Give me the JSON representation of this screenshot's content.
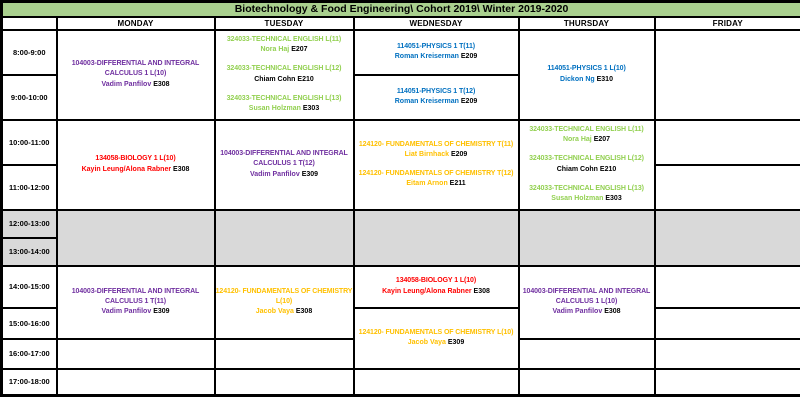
{
  "title": "Biotechnology & Food Engineering\\ Cohort 2019\\ Winter 2019-2020",
  "header_bg": "#a9d08e",
  "blocked_bg": "#d9d9d9",
  "course_colors": {
    "calculus": "#7030a0",
    "technical_english": "#92d050",
    "physics": "#0070c0",
    "biology": "#ff0000",
    "chemistry": "#ffc000"
  },
  "days": [
    "MONDAY",
    "TUESDAY",
    "WEDNESDAY",
    "THURSDAY",
    "FRIDAY"
  ],
  "times": [
    "8:00-9:00",
    "9:00-10:00",
    "10:00-11:00",
    "11:00-12:00",
    "12:00-13:00",
    "13:00-14:00",
    "14:00-15:00",
    "15:00-16:00",
    "16:00-17:00",
    "17:00-18:00"
  ],
  "cells": {
    "mon_8_10": {
      "entries": [
        {
          "title": "104003-DIFFERENTIAL AND INTEGRAL CALCULUS 1 L(10)",
          "name": "Vadim Panfilov",
          "room": "E308",
          "color": "#7030a0",
          "name_color": "#7030a0"
        }
      ]
    },
    "tue_8_10": {
      "entries": [
        {
          "title": "324033-TECHNICAL ENGLISH L(11)",
          "name": "Nora Haj",
          "room": "E207",
          "color": "#92d050",
          "name_color": "#92d050"
        },
        {
          "title": "324033-TECHNICAL ENGLISH L(12)",
          "name": "Chiam Cohn",
          "room": "E210",
          "color": "#92d050",
          "name_color": "#000000"
        },
        {
          "title": "324033-TECHNICAL ENGLISH L(13)",
          "name": "Susan Holzman",
          "room": "E303",
          "color": "#92d050",
          "name_color": "#92d050"
        }
      ]
    },
    "wed_8_9": {
      "entries": [
        {
          "title": "114051-PHYSICS 1 T(11)",
          "name": "Roman Kreiserman",
          "room": "E209",
          "color": "#0070c0",
          "name_color": "#0070c0"
        }
      ]
    },
    "wed_9_10": {
      "entries": [
        {
          "title": "114051-PHYSICS 1 T(12)",
          "name": "Roman Kreiserman",
          "room": "E209",
          "color": "#0070c0",
          "name_color": "#0070c0"
        }
      ]
    },
    "thu_8_10": {
      "entries": [
        {
          "title": "114051-PHYSICS 1 L(10)",
          "name": "Dickon Ng",
          "room": "E310",
          "color": "#0070c0",
          "name_color": "#0070c0"
        }
      ]
    },
    "mon_10_12": {
      "entries": [
        {
          "title": "134058-BIOLOGY 1 L(10)",
          "name": "Kayin Leung/Alona Rabner",
          "room": "E308",
          "color": "#ff0000",
          "name_color": "#ff0000"
        }
      ]
    },
    "tue_10_12": {
      "entries": [
        {
          "title": "104003-DIFFERENTIAL AND INTEGRAL CALCULUS 1 T(12)",
          "name": "Vadim Panfilov",
          "room": "E309",
          "color": "#7030a0",
          "name_color": "#7030a0"
        }
      ]
    },
    "wed_10_12": {
      "entries": [
        {
          "title": "124120- FUNDAMENTALS OF CHEMISTRY T(11)",
          "name": "Liat Birnhack",
          "room": "E209",
          "color": "#ffc000",
          "name_color": "#ffc000"
        },
        {
          "title": "124120- FUNDAMENTALS OF CHEMISTRY T(12)",
          "name": "Eitam Arnon",
          "room": "E211",
          "color": "#ffc000",
          "name_color": "#ffc000"
        }
      ]
    },
    "thu_10_12": {
      "entries": [
        {
          "title": "324033-TECHNICAL ENGLISH L(11)",
          "name": "Nora Haj",
          "room": "E207",
          "color": "#92d050",
          "name_color": "#92d050"
        },
        {
          "title": "324033-TECHNICAL ENGLISH L(12)",
          "name": "Chiam Cohn",
          "room": "E210",
          "color": "#92d050",
          "name_color": "#000000"
        },
        {
          "title": "324033-TECHNICAL ENGLISH L(13)",
          "name": "Susan Holzman",
          "room": "E303",
          "color": "#92d050",
          "name_color": "#92d050"
        }
      ]
    },
    "mon_14_16": {
      "entries": [
        {
          "title": "104003-DIFFERENTIAL AND INTEGRAL CALCULUS 1 T(11)",
          "name": "Vadim Panfilov",
          "room": "E309",
          "color": "#7030a0",
          "name_color": "#7030a0"
        }
      ]
    },
    "tue_14_16": {
      "entries": [
        {
          "title": "124120- FUNDAMENTALS OF CHEMISTRY L(10)",
          "name": "Jacob Vaya",
          "room": "E308",
          "color": "#ffc000",
          "name_color": "#ffc000"
        }
      ]
    },
    "wed_14_15": {
      "entries": [
        {
          "title": "134058-BIOLOGY 1 L(10)",
          "name": "Kayin Leung/Alona Rabner",
          "room": "E308",
          "color": "#ff0000",
          "name_color": "#ff0000"
        }
      ]
    },
    "wed_15_17": {
      "entries": [
        {
          "title": "124120- FUNDAMENTALS OF CHEMISTRY L(10)",
          "name": "Jacob Vaya",
          "room": "E309",
          "color": "#ffc000",
          "name_color": "#ffc000"
        }
      ]
    },
    "thu_14_16": {
      "entries": [
        {
          "title": "104003-DIFFERENTIAL AND INTEGRAL CALCULUS 1 L(10)",
          "name": "Vadim Panfilov",
          "room": "E308",
          "color": "#7030a0",
          "name_color": "#7030a0"
        }
      ]
    }
  }
}
